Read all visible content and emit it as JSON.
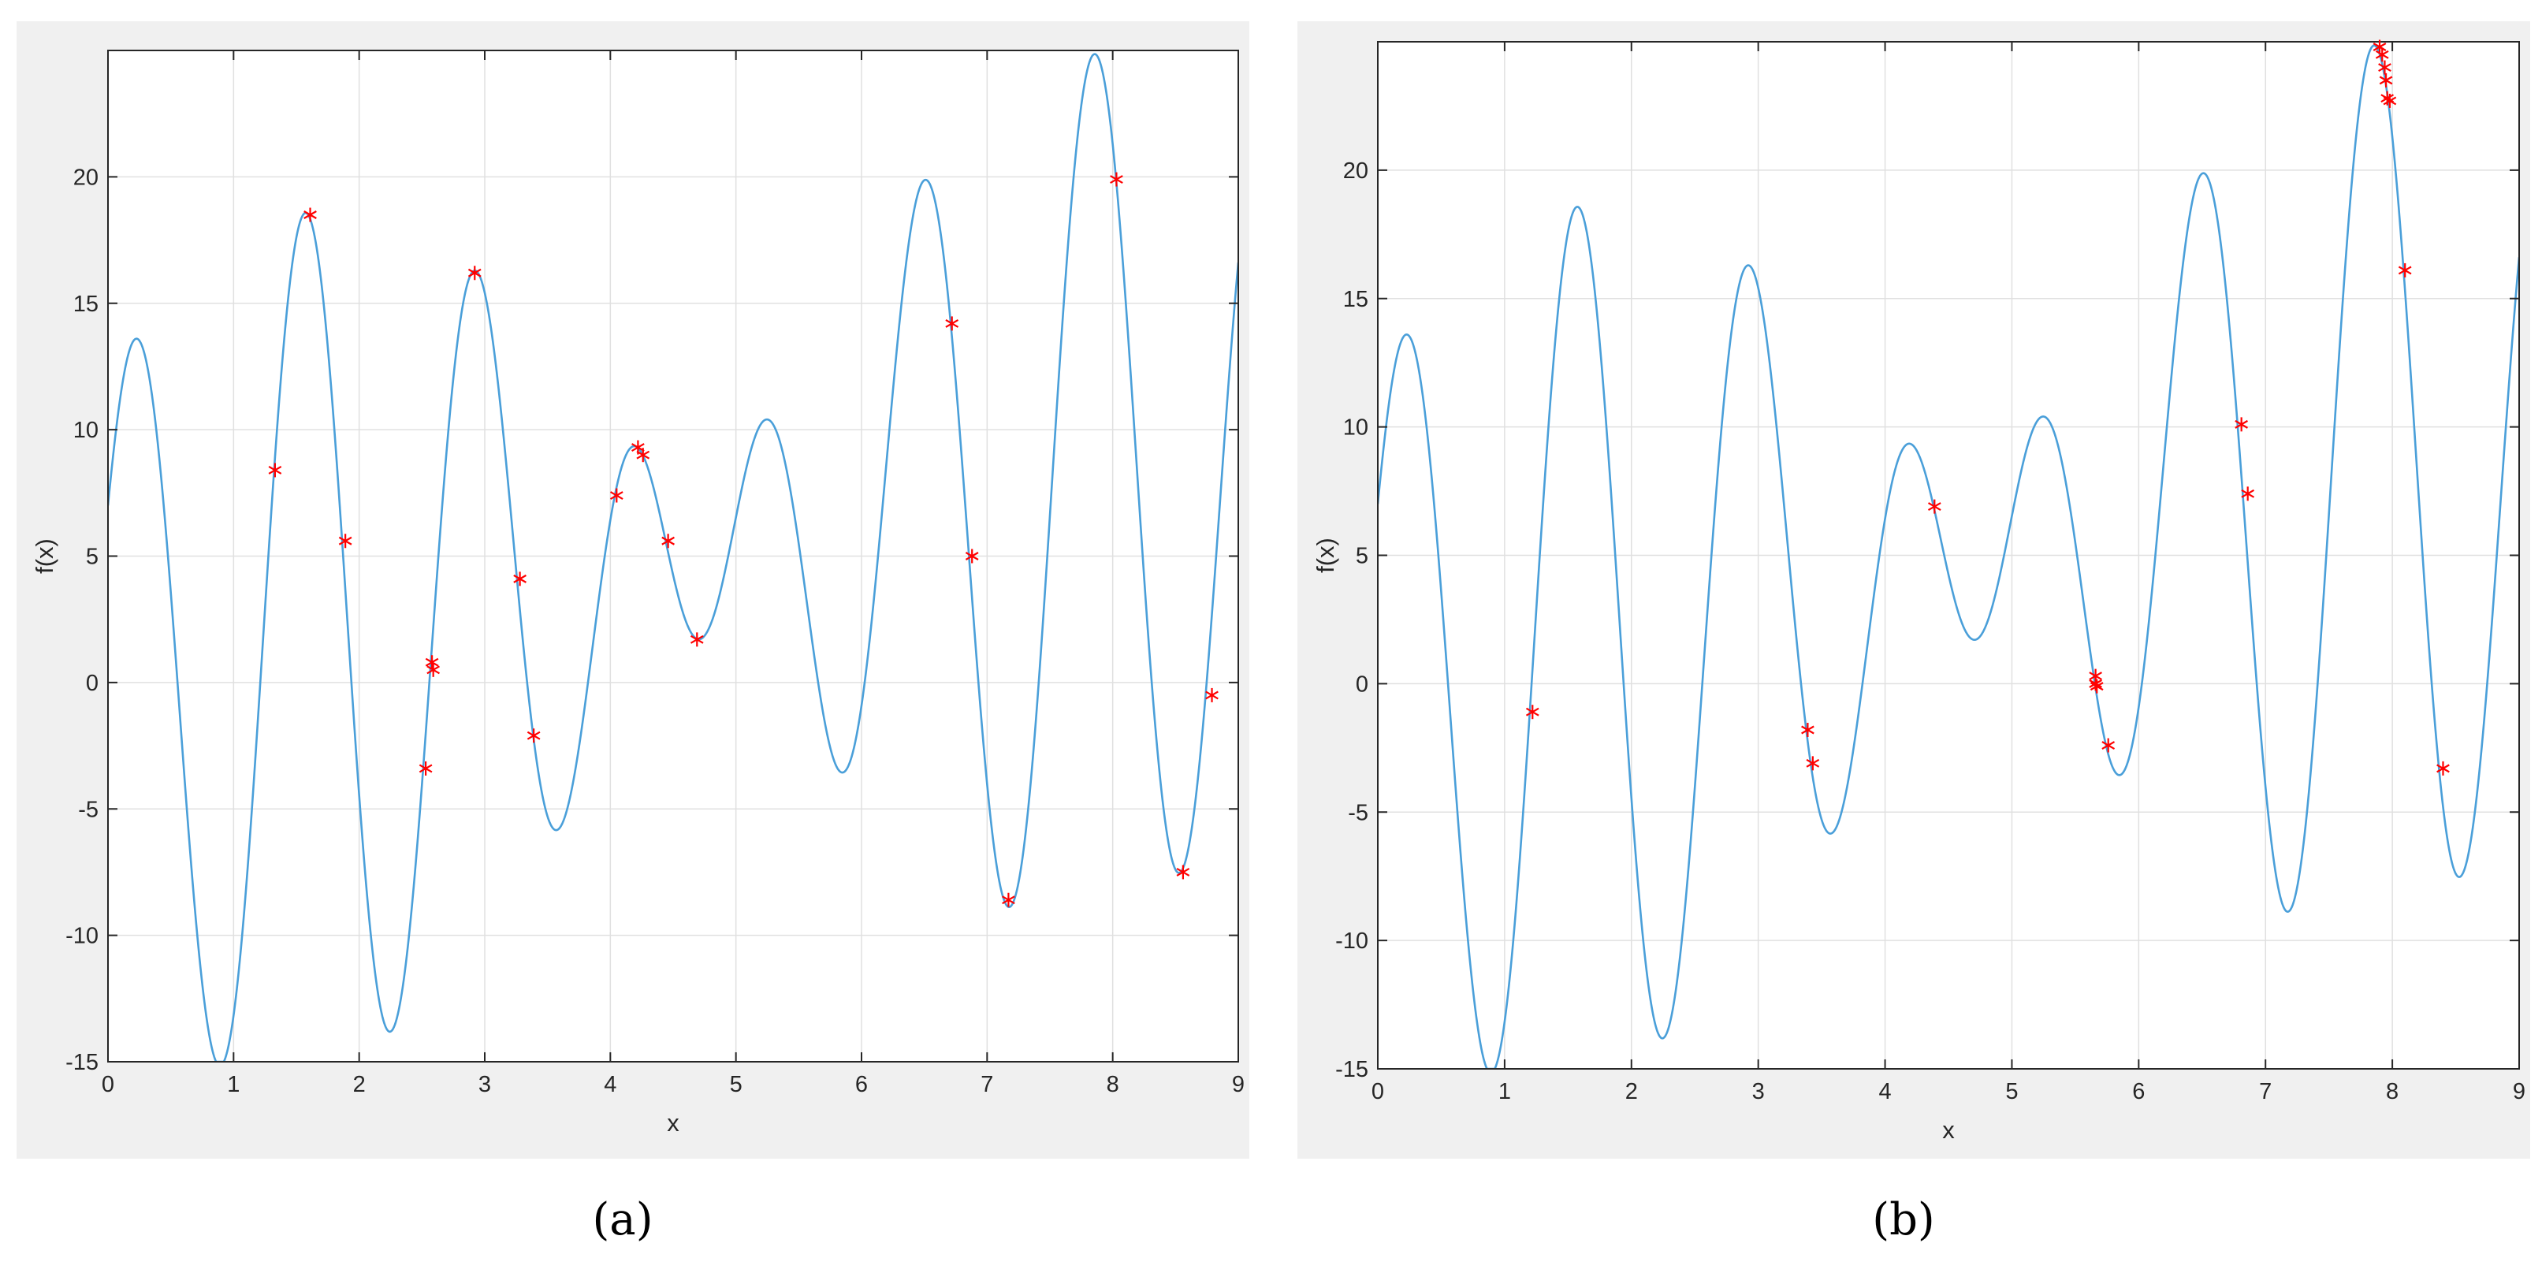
{
  "captions": {
    "a": "(a)",
    "b": "(b)"
  },
  "colors": {
    "curve": "#4a9fd9",
    "marker": "#ff0000",
    "panel_bg": "#f0f0f0",
    "grid": "#e0e0e0"
  },
  "chart_data": [
    {
      "type": "line",
      "panel": "a",
      "xlabel": "x",
      "ylabel": "f(x)",
      "xlim": [
        0,
        9
      ],
      "ylim": [
        -15,
        25
      ],
      "xticks": [
        0,
        1,
        2,
        3,
        4,
        5,
        6,
        7,
        8,
        9
      ],
      "yticks": [
        -15,
        -10,
        -5,
        0,
        5,
        10,
        15,
        20
      ],
      "grid": true,
      "function": "x + 10*sin(5x) + 7*cos(4x)",
      "markers": [
        {
          "x": 1.33,
          "y": 8.4
        },
        {
          "x": 1.61,
          "y": 18.5
        },
        {
          "x": 1.89,
          "y": 5.6
        },
        {
          "x": 2.53,
          "y": -3.4
        },
        {
          "x": 2.58,
          "y": 0.8
        },
        {
          "x": 2.59,
          "y": 0.5
        },
        {
          "x": 2.92,
          "y": 16.2
        },
        {
          "x": 3.28,
          "y": 4.1
        },
        {
          "x": 3.39,
          "y": -2.1
        },
        {
          "x": 4.05,
          "y": 7.4
        },
        {
          "x": 4.22,
          "y": 9.3
        },
        {
          "x": 4.26,
          "y": 9.0
        },
        {
          "x": 4.46,
          "y": 5.6
        },
        {
          "x": 4.69,
          "y": 1.7
        },
        {
          "x": 6.72,
          "y": 14.2
        },
        {
          "x": 6.88,
          "y": 5.0
        },
        {
          "x": 7.17,
          "y": -8.6
        },
        {
          "x": 8.03,
          "y": 19.9
        },
        {
          "x": 8.56,
          "y": -7.5
        },
        {
          "x": 8.79,
          "y": -0.5
        }
      ]
    },
    {
      "type": "line",
      "panel": "b",
      "xlabel": "x",
      "ylabel": "f(x)",
      "xlim": [
        0,
        9
      ],
      "ylim": [
        -15,
        25
      ],
      "xticks": [
        0,
        1,
        2,
        3,
        4,
        5,
        6,
        7,
        8,
        9
      ],
      "yticks": [
        -15,
        -10,
        -5,
        0,
        5,
        10,
        15,
        20
      ],
      "grid": true,
      "function": "x + 10*sin(5x) + 7*cos(4x)",
      "markers": [
        {
          "x": 1.22,
          "y": -1.1
        },
        {
          "x": 3.39,
          "y": -1.8
        },
        {
          "x": 3.43,
          "y": -3.1
        },
        {
          "x": 4.39,
          "y": 6.9
        },
        {
          "x": 5.66,
          "y": 0.3
        },
        {
          "x": 5.66,
          "y": 0.0
        },
        {
          "x": 5.67,
          "y": -0.1
        },
        {
          "x": 5.76,
          "y": -2.4
        },
        {
          "x": 6.81,
          "y": 10.1
        },
        {
          "x": 6.86,
          "y": 7.4
        },
        {
          "x": 7.9,
          "y": 24.8
        },
        {
          "x": 7.92,
          "y": 24.5
        },
        {
          "x": 7.94,
          "y": 24.0
        },
        {
          "x": 7.95,
          "y": 23.5
        },
        {
          "x": 7.96,
          "y": 22.8
        },
        {
          "x": 7.98,
          "y": 22.7
        },
        {
          "x": 8.1,
          "y": 16.1
        },
        {
          "x": 8.4,
          "y": -3.3
        }
      ]
    }
  ]
}
